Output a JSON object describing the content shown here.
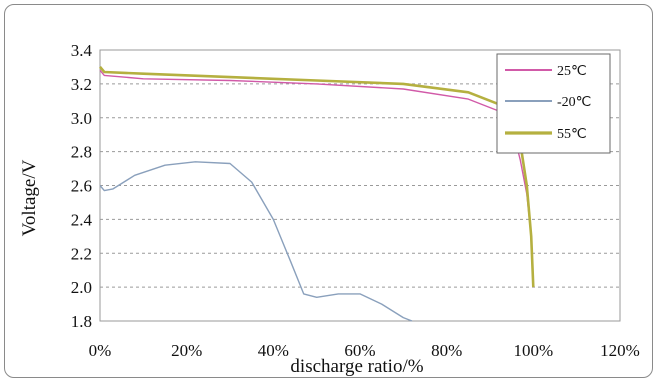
{
  "chart_data": {
    "type": "line",
    "xlabel": "discharge ratio/%",
    "ylabel": "Voltage/V",
    "xlim": [
      0,
      120
    ],
    "ylim": [
      1.8,
      3.4
    ],
    "x_ticks": [
      "0%",
      "20%",
      "40%",
      "60%",
      "80%",
      "100%",
      "120%"
    ],
    "x_tick_values": [
      0,
      20,
      40,
      60,
      80,
      100,
      120
    ],
    "y_ticks": [
      "1.8",
      "2.0",
      "2.2",
      "2.4",
      "2.6",
      "2.8",
      "3.0",
      "3.2",
      "3.4"
    ],
    "y_tick_values": [
      1.8,
      2.0,
      2.2,
      2.4,
      2.6,
      2.8,
      3.0,
      3.2,
      3.4
    ],
    "grid": "horizontal-dashed",
    "legend_position": "top-right",
    "series": [
      {
        "name": "25℃",
        "color": "#d15aa8",
        "points": [
          [
            0,
            3.28
          ],
          [
            1,
            3.25
          ],
          [
            10,
            3.23
          ],
          [
            30,
            3.22
          ],
          [
            50,
            3.2
          ],
          [
            70,
            3.17
          ],
          [
            85,
            3.11
          ],
          [
            92,
            3.04
          ],
          [
            95,
            2.95
          ],
          [
            97,
            2.75
          ],
          [
            98.5,
            2.55
          ],
          [
            99.5,
            2.3
          ],
          [
            100,
            2.0
          ]
        ]
      },
      {
        "name": "-20℃",
        "color": "#8aa0bc",
        "points": [
          [
            0,
            2.6
          ],
          [
            1,
            2.57
          ],
          [
            3,
            2.58
          ],
          [
            8,
            2.66
          ],
          [
            15,
            2.72
          ],
          [
            22,
            2.74
          ],
          [
            30,
            2.73
          ],
          [
            35,
            2.62
          ],
          [
            40,
            2.4
          ],
          [
            44,
            2.15
          ],
          [
            47,
            1.96
          ],
          [
            50,
            1.94
          ],
          [
            55,
            1.96
          ],
          [
            60,
            1.96
          ],
          [
            65,
            1.9
          ],
          [
            70,
            1.82
          ],
          [
            72,
            1.8
          ]
        ]
      },
      {
        "name": "55℃",
        "color": "#b5b040",
        "points": [
          [
            0,
            3.3
          ],
          [
            1,
            3.27
          ],
          [
            10,
            3.26
          ],
          [
            30,
            3.24
          ],
          [
            50,
            3.22
          ],
          [
            70,
            3.2
          ],
          [
            85,
            3.15
          ],
          [
            92,
            3.08
          ],
          [
            95,
            3.0
          ],
          [
            97,
            2.85
          ],
          [
            98.5,
            2.6
          ],
          [
            99.5,
            2.3
          ],
          [
            100,
            2.0
          ]
        ]
      }
    ]
  }
}
